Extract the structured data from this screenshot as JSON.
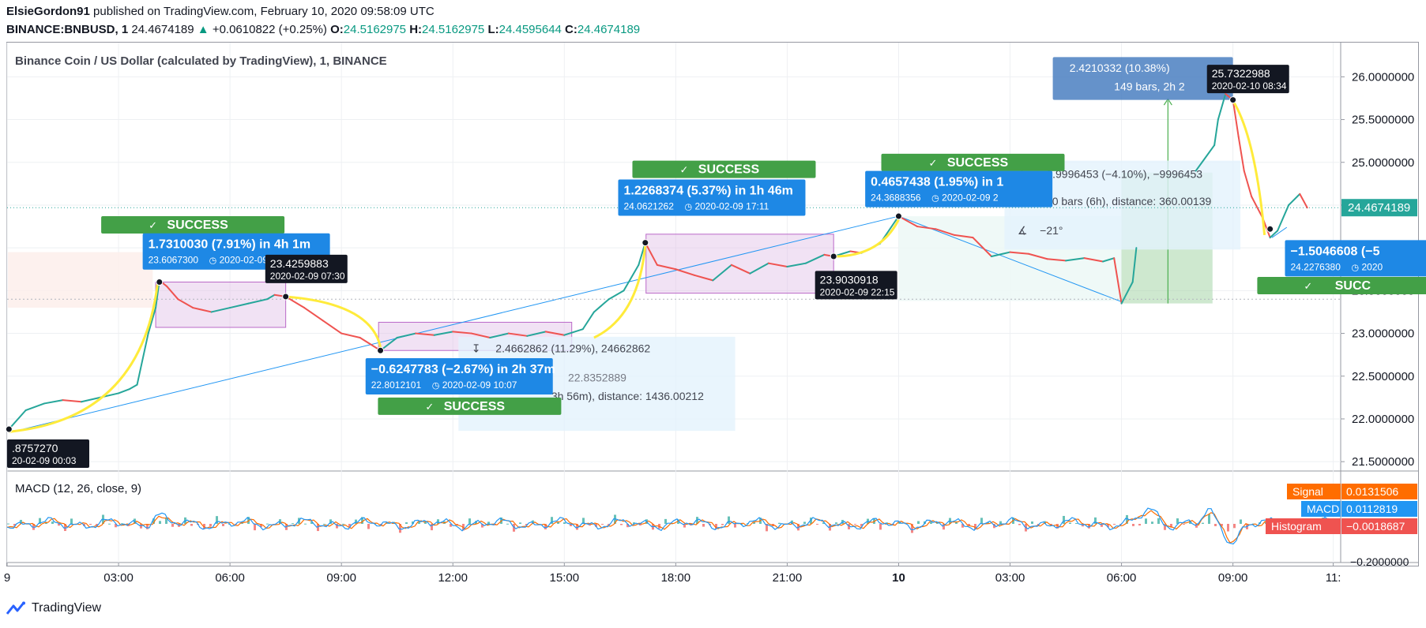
{
  "header": {
    "publisher_user": "ElsieGordon91",
    "published_text": "published on TradingView.com, February 10, 2020 09:58:09 UTC",
    "symbol": "BINANCE:BNBUSD, 1",
    "last": "24.4674189",
    "change": "+0.0610822 (+0.25%)",
    "o_label": "O:",
    "o_value": "24.5162975",
    "h_label": "H:",
    "h_value": "24.5162975",
    "l_label": "L:",
    "l_value": "24.4595644",
    "c_label": "C:",
    "c_value": "24.4674189"
  },
  "footer": {
    "brand": "TradingView"
  },
  "chart_data": [
    {
      "type": "line",
      "title": "Binance Coin / US Dollar (calculated by TradingView), 1, BINANCE",
      "y_axis": {
        "range": [
          21.4,
          26.4
        ],
        "ticks": [
          "21.5000000",
          "22.0000000",
          "22.5000000",
          "23.0000000",
          "23.5000000",
          "24.0000000",
          "24.5000000",
          "25.0000000",
          "25.5000000",
          "26.0000000"
        ],
        "tick_values": [
          21.5,
          22.0,
          22.5,
          23.0,
          23.5,
          24.0,
          24.5,
          25.0,
          25.5,
          26.0
        ],
        "last_price_label": "24.4674189"
      },
      "x_axis": {
        "range_hours": [
          0,
          35.9
        ],
        "ticks": [
          {
            "label": "9",
            "h": 0,
            "bold": false
          },
          {
            "label": "03:00",
            "h": 3,
            "bold": false
          },
          {
            "label": "06:00",
            "h": 6,
            "bold": false
          },
          {
            "label": "09:00",
            "h": 9,
            "bold": false
          },
          {
            "label": "12:00",
            "h": 12,
            "bold": false
          },
          {
            "label": "15:00",
            "h": 15,
            "bold": false
          },
          {
            "label": "18:00",
            "h": 18,
            "bold": false
          },
          {
            "label": "21:00",
            "h": 21,
            "bold": false
          },
          {
            "label": "10",
            "h": 24,
            "bold": true
          },
          {
            "label": "03:00",
            "h": 27,
            "bold": false
          },
          {
            "label": "06:00",
            "h": 30,
            "bold": false
          },
          {
            "label": "09:00",
            "h": 33,
            "bold": false
          },
          {
            "label": "11:",
            "h": 35.7,
            "bold": false
          }
        ]
      },
      "series": [
        {
          "color_up": "#26a69a",
          "color_down": "#ef5350",
          "points": [
            [
              0.05,
              21.88
            ],
            [
              0.5,
              22.1
            ],
            [
              1.0,
              22.18
            ],
            [
              1.5,
              22.22
            ],
            [
              2.0,
              22.2
            ],
            [
              2.5,
              22.25
            ],
            [
              3.0,
              22.3
            ],
            [
              3.3,
              22.35
            ],
            [
              3.5,
              22.4
            ],
            [
              3.8,
              23.0
            ],
            [
              4.0,
              23.3
            ],
            [
              4.1,
              23.62
            ],
            [
              4.3,
              23.55
            ],
            [
              4.6,
              23.4
            ],
            [
              5.0,
              23.3
            ],
            [
              5.5,
              23.25
            ],
            [
              6.0,
              23.3
            ],
            [
              6.5,
              23.35
            ],
            [
              7.0,
              23.4
            ],
            [
              7.2,
              23.45
            ],
            [
              7.5,
              23.43
            ],
            [
              8.0,
              23.3
            ],
            [
              8.5,
              23.15
            ],
            [
              9.0,
              23.0
            ],
            [
              9.5,
              22.95
            ],
            [
              10.05,
              22.8
            ],
            [
              10.5,
              22.95
            ],
            [
              11.0,
              23.0
            ],
            [
              11.5,
              22.98
            ],
            [
              12.0,
              23.02
            ],
            [
              12.5,
              23.0
            ],
            [
              13.0,
              22.95
            ],
            [
              13.5,
              23.0
            ],
            [
              14.0,
              22.97
            ],
            [
              14.5,
              23.02
            ],
            [
              15.0,
              22.98
            ],
            [
              15.5,
              23.05
            ],
            [
              15.8,
              23.25
            ],
            [
              16.2,
              23.4
            ],
            [
              16.6,
              23.5
            ],
            [
              17.0,
              23.8
            ],
            [
              17.18,
              24.06
            ],
            [
              17.5,
              23.8
            ],
            [
              18.0,
              23.75
            ],
            [
              18.5,
              23.68
            ],
            [
              19.0,
              23.62
            ],
            [
              19.5,
              23.8
            ],
            [
              20.0,
              23.7
            ],
            [
              20.5,
              23.82
            ],
            [
              21.0,
              23.78
            ],
            [
              21.5,
              23.82
            ],
            [
              22.0,
              23.92
            ],
            [
              22.25,
              23.9
            ],
            [
              22.7,
              23.96
            ],
            [
              23.0,
              23.94
            ],
            [
              23.5,
              24.05
            ],
            [
              24.0,
              24.37
            ],
            [
              24.5,
              24.25
            ],
            [
              25.0,
              24.22
            ],
            [
              25.5,
              24.15
            ],
            [
              26.0,
              24.12
            ],
            [
              26.5,
              23.9
            ],
            [
              27.0,
              23.95
            ],
            [
              27.5,
              23.93
            ],
            [
              28.0,
              23.87
            ],
            [
              28.5,
              23.85
            ],
            [
              29.0,
              23.88
            ],
            [
              29.5,
              23.84
            ],
            [
              29.8,
              23.88
            ],
            [
              30.0,
              23.35
            ],
            [
              30.3,
              23.6
            ],
            [
              30.4,
              24.0
            ],
            [
              32.0,
              24.9
            ],
            [
              32.5,
              25.2
            ],
            [
              32.6,
              25.5
            ],
            [
              32.8,
              25.8
            ],
            [
              33.0,
              25.73
            ],
            [
              33.15,
              25.3
            ],
            [
              33.3,
              24.9
            ],
            [
              33.5,
              24.6
            ],
            [
              33.8,
              24.35
            ],
            [
              34.0,
              24.12
            ],
            [
              34.2,
              24.2
            ],
            [
              34.5,
              24.5
            ],
            [
              34.8,
              24.63
            ],
            [
              35.0,
              24.47
            ]
          ],
          "omitted_spans": [
            [
              30.4,
              32.0
            ]
          ]
        }
      ],
      "annotations": {
        "success_labels": [
          {
            "text": "SUCCESS",
            "center_h": 5.0,
            "top_price": 24.37
          },
          {
            "text": "SUCCESS",
            "center_h": 12.45,
            "top_price": 22.25
          },
          {
            "text": "SUCCESS",
            "center_h": 19.3,
            "top_price": 25.02
          },
          {
            "text": "SUCCESS",
            "center_h": 26.0,
            "top_price": 25.1
          },
          {
            "text": "SUCC",
            "center_h": 36.1,
            "top_price": 23.66
          }
        ],
        "measure_tags": [
          {
            "line1": "1.7310030 (7.91%) in 4h 1m",
            "line2": "23.6067300",
            "line3": "2020-02-09",
            "left_h": 3.65,
            "top_price": 24.17
          },
          {
            "line1": "−0.6247783 (−2.67%) in 2h 37m",
            "line2": "22.8012101",
            "line3": "2020-02-09  10:07",
            "left_h": 9.65,
            "top_price": 22.71
          },
          {
            "line1": "1.2268374 (5.37%) in 1h 46m",
            "line2": "24.0621262",
            "line3": "2020-02-09  17:11",
            "left_h": 16.45,
            "top_price": 24.8
          },
          {
            "line1": "0.4657438 (1.95%) in 1",
            "line2": "24.3688356",
            "line3": "2020-02-09  2",
            "left_h": 23.1,
            "top_price": 24.9
          },
          {
            "line1": "−1.5046608 (−5",
            "line2": "24.2276380",
            "line3": "2020",
            "left_h": 34.4,
            "top_price": 24.09
          }
        ],
        "price_tags": [
          {
            "line1": "23.4259883",
            "line2": "2020-02-09 07:30",
            "left_h": 6.95,
            "top_price": 23.92
          },
          {
            "line1": "23.9030918",
            "line2": "2020-02-09 22:15",
            "left_h": 21.75,
            "top_price": 23.73
          },
          {
            "line1": "25.7322988",
            "line2": "2020-02-10 08:34",
            "left_h": 32.3,
            "top_price": 26.14
          },
          {
            "line1": ".8757270",
            "line2": "20-02-09 00:03",
            "left_h": -0.05,
            "top_price": 21.76
          }
        ],
        "date_range_boxes": [
          {
            "line1": "2.4662862 (11.29%), 24662862",
            "line2": "22.8352889",
            "line3": "3h 56m), distance: 1436.00212"
          },
          {
            "line1": "−0.9996453 (−4.10%), −9996453",
            "line2": "360 bars (6h), distance: 360.00139",
            "line3": "−21°"
          },
          {
            "line1": "2.4210332 (10.38%)",
            "line2": "149 bars, 2h 2"
          }
        ]
      }
    },
    {
      "type": "line",
      "title": "MACD (12, 26, close, 9)",
      "y_axis": {
        "ticks": [
          "−0.2000000"
        ]
      },
      "legend": [
        {
          "name": "Signal",
          "value": "0.0131506",
          "color": "#ff6d00"
        },
        {
          "name": "MACD",
          "value": "0.0112819",
          "color": "#2196f3"
        },
        {
          "name": "Histogram",
          "value": "−0.0018687",
          "color": "#ef5350"
        }
      ]
    }
  ]
}
